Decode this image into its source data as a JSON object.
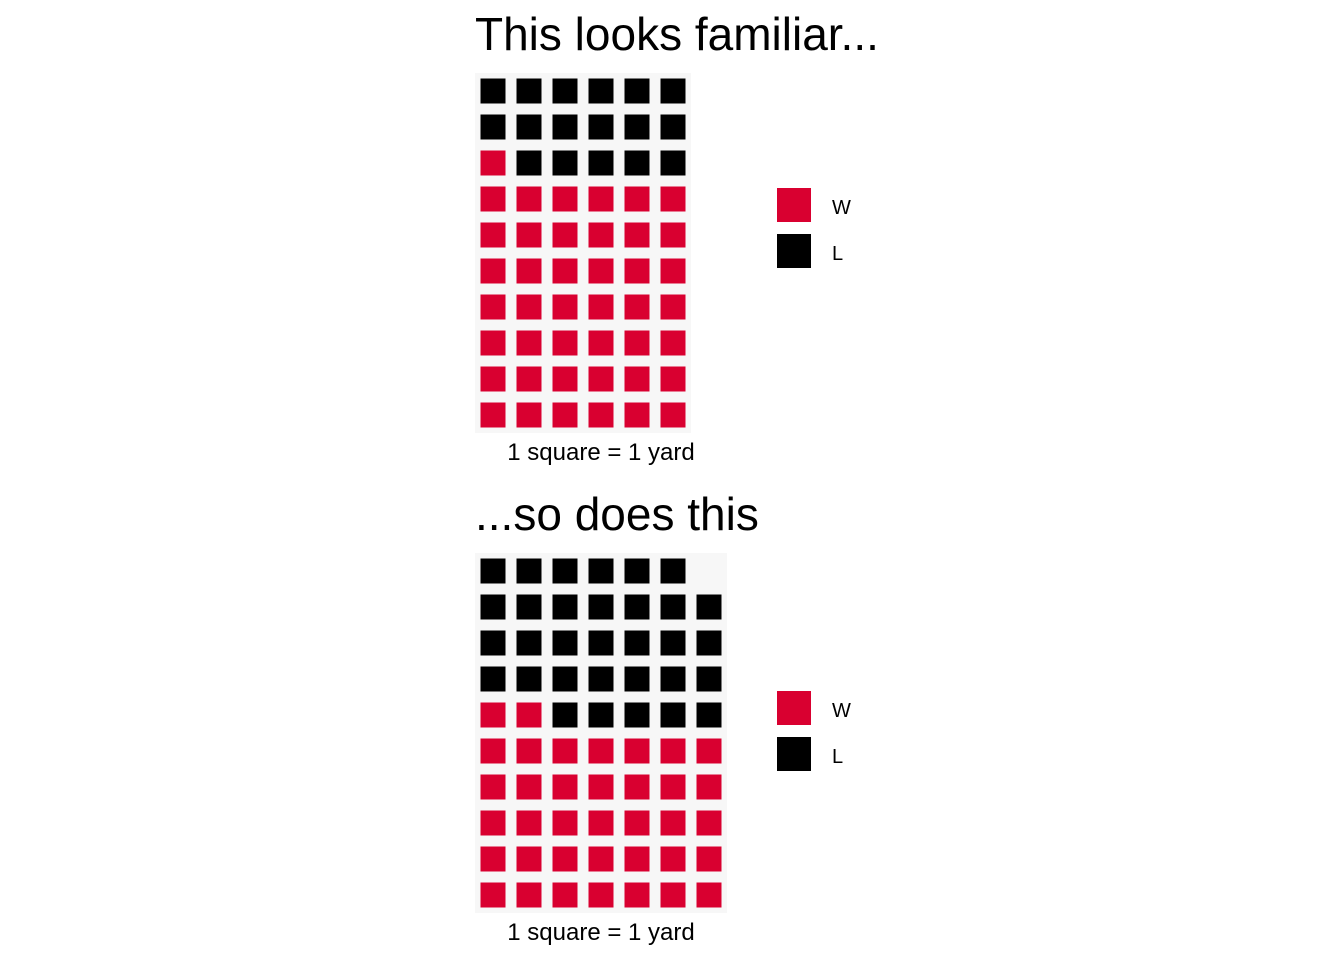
{
  "colors": {
    "w": "#D90030",
    "l": "#000000",
    "background": "#FFFFFF",
    "panel": "#F7F7F7"
  },
  "chart_data": [
    {
      "type": "waffle",
      "title": "This looks familiar...",
      "xlabel": "1 square = 1 yard",
      "rows": 10,
      "layout": "fill rows bottom-up, left to right within row",
      "columns": 6,
      "series": [
        {
          "name": "W",
          "value": 43,
          "color": "#D90030"
        },
        {
          "name": "L",
          "value": 17,
          "color": "#000000"
        }
      ],
      "legend": {
        "position": "right",
        "entries": [
          "W",
          "L"
        ]
      }
    },
    {
      "type": "waffle",
      "title": "...so does this",
      "xlabel": "1 square = 1 yard",
      "rows": 10,
      "layout": "fill rows bottom-up, left to right within row",
      "columns": 7,
      "series": [
        {
          "name": "W",
          "value": 37,
          "color": "#D90030"
        },
        {
          "name": "L",
          "value": 32,
          "color": "#000000"
        }
      ],
      "legend": {
        "position": "right",
        "entries": [
          "W",
          "L"
        ]
      }
    }
  ]
}
